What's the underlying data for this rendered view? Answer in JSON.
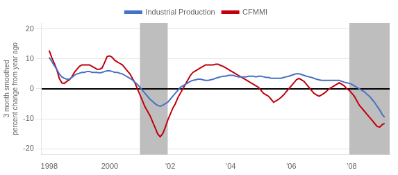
{
  "chart_data": {
    "type": "line",
    "ylabel": "3 month smoothed\npercent change from year ago",
    "xlim": [
      1997.75,
      2009.25
    ],
    "xticks": [
      1998,
      2000,
      {
        "value": 2002,
        "label": "'02"
      },
      {
        "value": 2004,
        "label": "'04"
      },
      {
        "value": 2006,
        "label": "'06"
      },
      {
        "value": 2008,
        "label": "'08"
      }
    ],
    "ylim": [
      -22,
      22
    ],
    "yticks": [
      -20,
      -10,
      0,
      10,
      20
    ],
    "grid": "y",
    "legend": "top",
    "shading": [
      {
        "from": 2001.0,
        "to": 2001.917,
        "color": "#BEBEBE"
      },
      {
        "from": 2007.917,
        "to": 2009.25,
        "color": "#BEBEBE"
      }
    ],
    "reference_lines": [
      {
        "y": 0,
        "color": "#000000"
      }
    ],
    "x": [
      1998.0,
      1998.083,
      1998.167,
      1998.25,
      1998.333,
      1998.417,
      1998.5,
      1998.583,
      1998.667,
      1998.75,
      1998.833,
      1998.917,
      1999.0,
      1999.083,
      1999.167,
      1999.25,
      1999.333,
      1999.417,
      1999.5,
      1999.583,
      1999.667,
      1999.75,
      1999.833,
      1999.917,
      2000.0,
      2000.083,
      2000.167,
      2000.25,
      2000.333,
      2000.417,
      2000.5,
      2000.583,
      2000.667,
      2000.75,
      2000.833,
      2000.917,
      2001.0,
      2001.083,
      2001.167,
      2001.25,
      2001.333,
      2001.417,
      2001.5,
      2001.583,
      2001.667,
      2001.75,
      2001.833,
      2001.917,
      2002.0,
      2002.083,
      2002.167,
      2002.25,
      2002.333,
      2002.417,
      2002.5,
      2002.583,
      2002.667,
      2002.75,
      2002.833,
      2002.917,
      2003.0,
      2003.083,
      2003.167,
      2003.25,
      2003.333,
      2003.417,
      2003.5,
      2003.583,
      2003.667,
      2003.75,
      2003.833,
      2003.917,
      2004.0,
      2004.083,
      2004.167,
      2004.25,
      2004.333,
      2004.417,
      2004.5,
      2004.583,
      2004.667,
      2004.75,
      2004.833,
      2004.917,
      2005.0,
      2005.083,
      2005.167,
      2005.25,
      2005.333,
      2005.417,
      2005.5,
      2005.583,
      2005.667,
      2005.75,
      2005.833,
      2005.917,
      2006.0,
      2006.083,
      2006.167,
      2006.25,
      2006.333,
      2006.417,
      2006.5,
      2006.583,
      2006.667,
      2006.75,
      2006.833,
      2006.917,
      2007.0,
      2007.083,
      2007.167,
      2007.25,
      2007.333,
      2007.417,
      2007.5,
      2007.583,
      2007.667,
      2007.75,
      2007.833,
      2007.917,
      2008.0,
      2008.083,
      2008.167,
      2008.25,
      2008.333,
      2008.417,
      2008.5,
      2008.583,
      2008.667,
      2008.75,
      2008.833,
      2008.917,
      2009.0,
      2009.083
    ],
    "series": [
      {
        "name": "Industrial Production",
        "color": "#4472C4",
        "values": [
          10.5,
          9.2,
          7.8,
          6.5,
          5.0,
          4.0,
          3.5,
          3.2,
          3.2,
          3.8,
          4.5,
          5.0,
          5.2,
          5.5,
          5.5,
          5.8,
          5.8,
          5.5,
          5.5,
          5.5,
          5.3,
          5.5,
          5.8,
          6.0,
          6.0,
          5.8,
          5.5,
          5.5,
          5.2,
          5.0,
          4.5,
          4.0,
          3.5,
          3.0,
          2.2,
          1.5,
          0.5,
          -0.5,
          -1.5,
          -2.5,
          -3.5,
          -4.2,
          -5.0,
          -5.5,
          -5.8,
          -5.5,
          -5.0,
          -4.5,
          -3.5,
          -2.5,
          -1.5,
          -0.5,
          0.5,
          1.0,
          1.5,
          2.0,
          2.5,
          2.8,
          3.0,
          3.2,
          3.2,
          3.0,
          2.8,
          2.8,
          3.0,
          3.2,
          3.5,
          3.8,
          4.0,
          4.2,
          4.2,
          4.5,
          4.5,
          4.5,
          4.2,
          4.0,
          4.0,
          4.0,
          4.0,
          4.2,
          4.2,
          4.2,
          4.0,
          4.2,
          4.2,
          4.0,
          3.8,
          3.8,
          3.5,
          3.5,
          3.5,
          3.5,
          3.5,
          3.8,
          4.0,
          4.2,
          4.5,
          4.8,
          5.0,
          5.0,
          4.8,
          4.5,
          4.2,
          4.0,
          3.8,
          3.5,
          3.2,
          3.0,
          2.8,
          2.8,
          2.8,
          2.8,
          2.8,
          2.8,
          2.8,
          2.8,
          2.5,
          2.2,
          2.0,
          1.8,
          1.5,
          1.0,
          0.5,
          0.0,
          -0.5,
          -1.0,
          -1.8,
          -2.5,
          -3.5,
          -4.5,
          -5.8,
          -7.0,
          -8.5,
          -9.5
        ]
      },
      {
        "name": "CFMMI",
        "color": "#C0000C",
        "values": [
          12.8,
          10.5,
          8.5,
          6.5,
          3.5,
          2.0,
          1.8,
          2.5,
          3.0,
          4.0,
          5.5,
          6.5,
          7.5,
          8.0,
          8.0,
          8.0,
          8.0,
          7.5,
          7.0,
          6.5,
          6.5,
          7.0,
          8.8,
          10.8,
          11.0,
          10.5,
          9.5,
          9.0,
          8.5,
          8.0,
          7.0,
          6.0,
          5.0,
          3.5,
          2.0,
          0.0,
          -2.0,
          -4.0,
          -6.0,
          -7.5,
          -9.0,
          -11.0,
          -13.0,
          -15.0,
          -16.0,
          -15.0,
          -13.0,
          -10.5,
          -8.5,
          -6.5,
          -5.0,
          -3.0,
          -1.5,
          0.0,
          1.5,
          3.0,
          4.5,
          5.5,
          6.0,
          6.5,
          7.0,
          7.5,
          8.0,
          8.0,
          8.0,
          8.0,
          8.2,
          8.2,
          7.8,
          7.5,
          7.0,
          6.5,
          6.0,
          5.5,
          5.0,
          4.5,
          4.0,
          3.5,
          3.0,
          2.5,
          2.0,
          1.5,
          1.0,
          0.5,
          -0.5,
          -1.5,
          -2.0,
          -2.5,
          -3.5,
          -4.5,
          -4.0,
          -3.5,
          -2.8,
          -2.0,
          -1.0,
          0.0,
          1.0,
          2.0,
          3.0,
          3.5,
          3.0,
          2.5,
          1.5,
          0.5,
          -0.5,
          -1.5,
          -2.0,
          -2.5,
          -2.0,
          -1.5,
          -0.8,
          0.0,
          0.5,
          1.0,
          1.5,
          2.0,
          1.5,
          1.0,
          0.0,
          -0.5,
          -1.5,
          -2.5,
          -4.0,
          -5.5,
          -6.5,
          -7.5,
          -8.5,
          -9.5,
          -10.5,
          -11.5,
          -12.5,
          -12.8,
          -12.0,
          -11.5
        ]
      }
    ]
  }
}
